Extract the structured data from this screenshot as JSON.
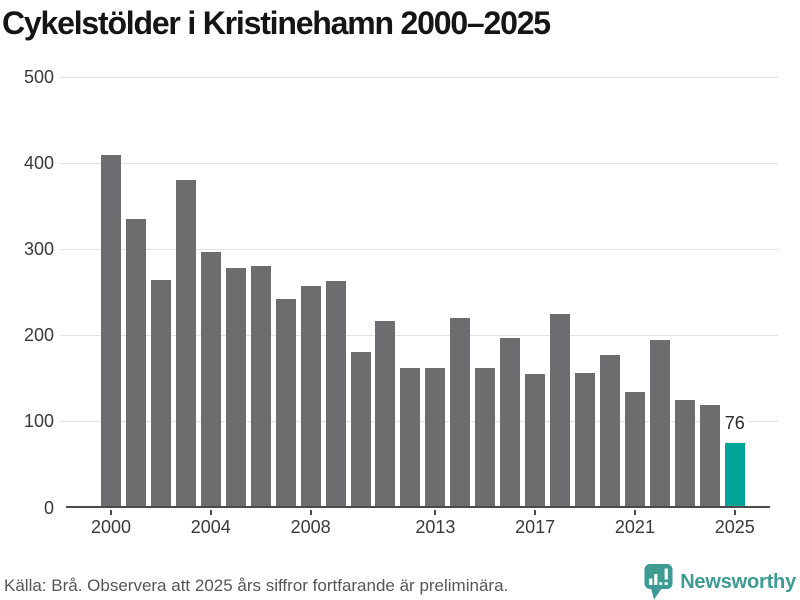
{
  "title": "Cykelstölder i Kristinehamn 2000–2025",
  "chart_data": {
    "type": "bar",
    "categories": [
      2000,
      2001,
      2002,
      2003,
      2004,
      2005,
      2006,
      2007,
      2008,
      2009,
      2010,
      2011,
      2012,
      2013,
      2014,
      2015,
      2016,
      2017,
      2018,
      2019,
      2020,
      2021,
      2022,
      2023,
      2024,
      2025
    ],
    "values": [
      410,
      335,
      264,
      381,
      297,
      279,
      281,
      243,
      258,
      263,
      181,
      217,
      163,
      163,
      220,
      163,
      197,
      155,
      225,
      157,
      177,
      135,
      195,
      125,
      119,
      76
    ],
    "title": "Cykelstölder i Kristinehamn 2000–2025",
    "xlabel": "",
    "ylabel": "",
    "ylim": [
      0,
      500
    ],
    "yticks": [
      0,
      100,
      200,
      300,
      400,
      500
    ],
    "xtick_labels": [
      "2000",
      "2004",
      "2008",
      "2013",
      "2017",
      "2021",
      "2025"
    ],
    "xtick_indices": [
      0,
      4,
      8,
      13,
      17,
      21,
      25
    ],
    "grid": true,
    "legend": false,
    "bar_color": "#6d6d70",
    "highlight_color": "#00a29a",
    "highlight_index": 25,
    "annotation": {
      "index": 25,
      "text": "76"
    }
  },
  "footer": {
    "source": "Källa: Brå. Observera att 2025 års siffror fortfarande är preliminära.",
    "brand": "Newsworthy"
  },
  "colors": {
    "axis": "#4a4a4c",
    "gridline": "#e3e3e3",
    "label": "#3a3a3a",
    "brand_teal": "#3d9b94"
  }
}
